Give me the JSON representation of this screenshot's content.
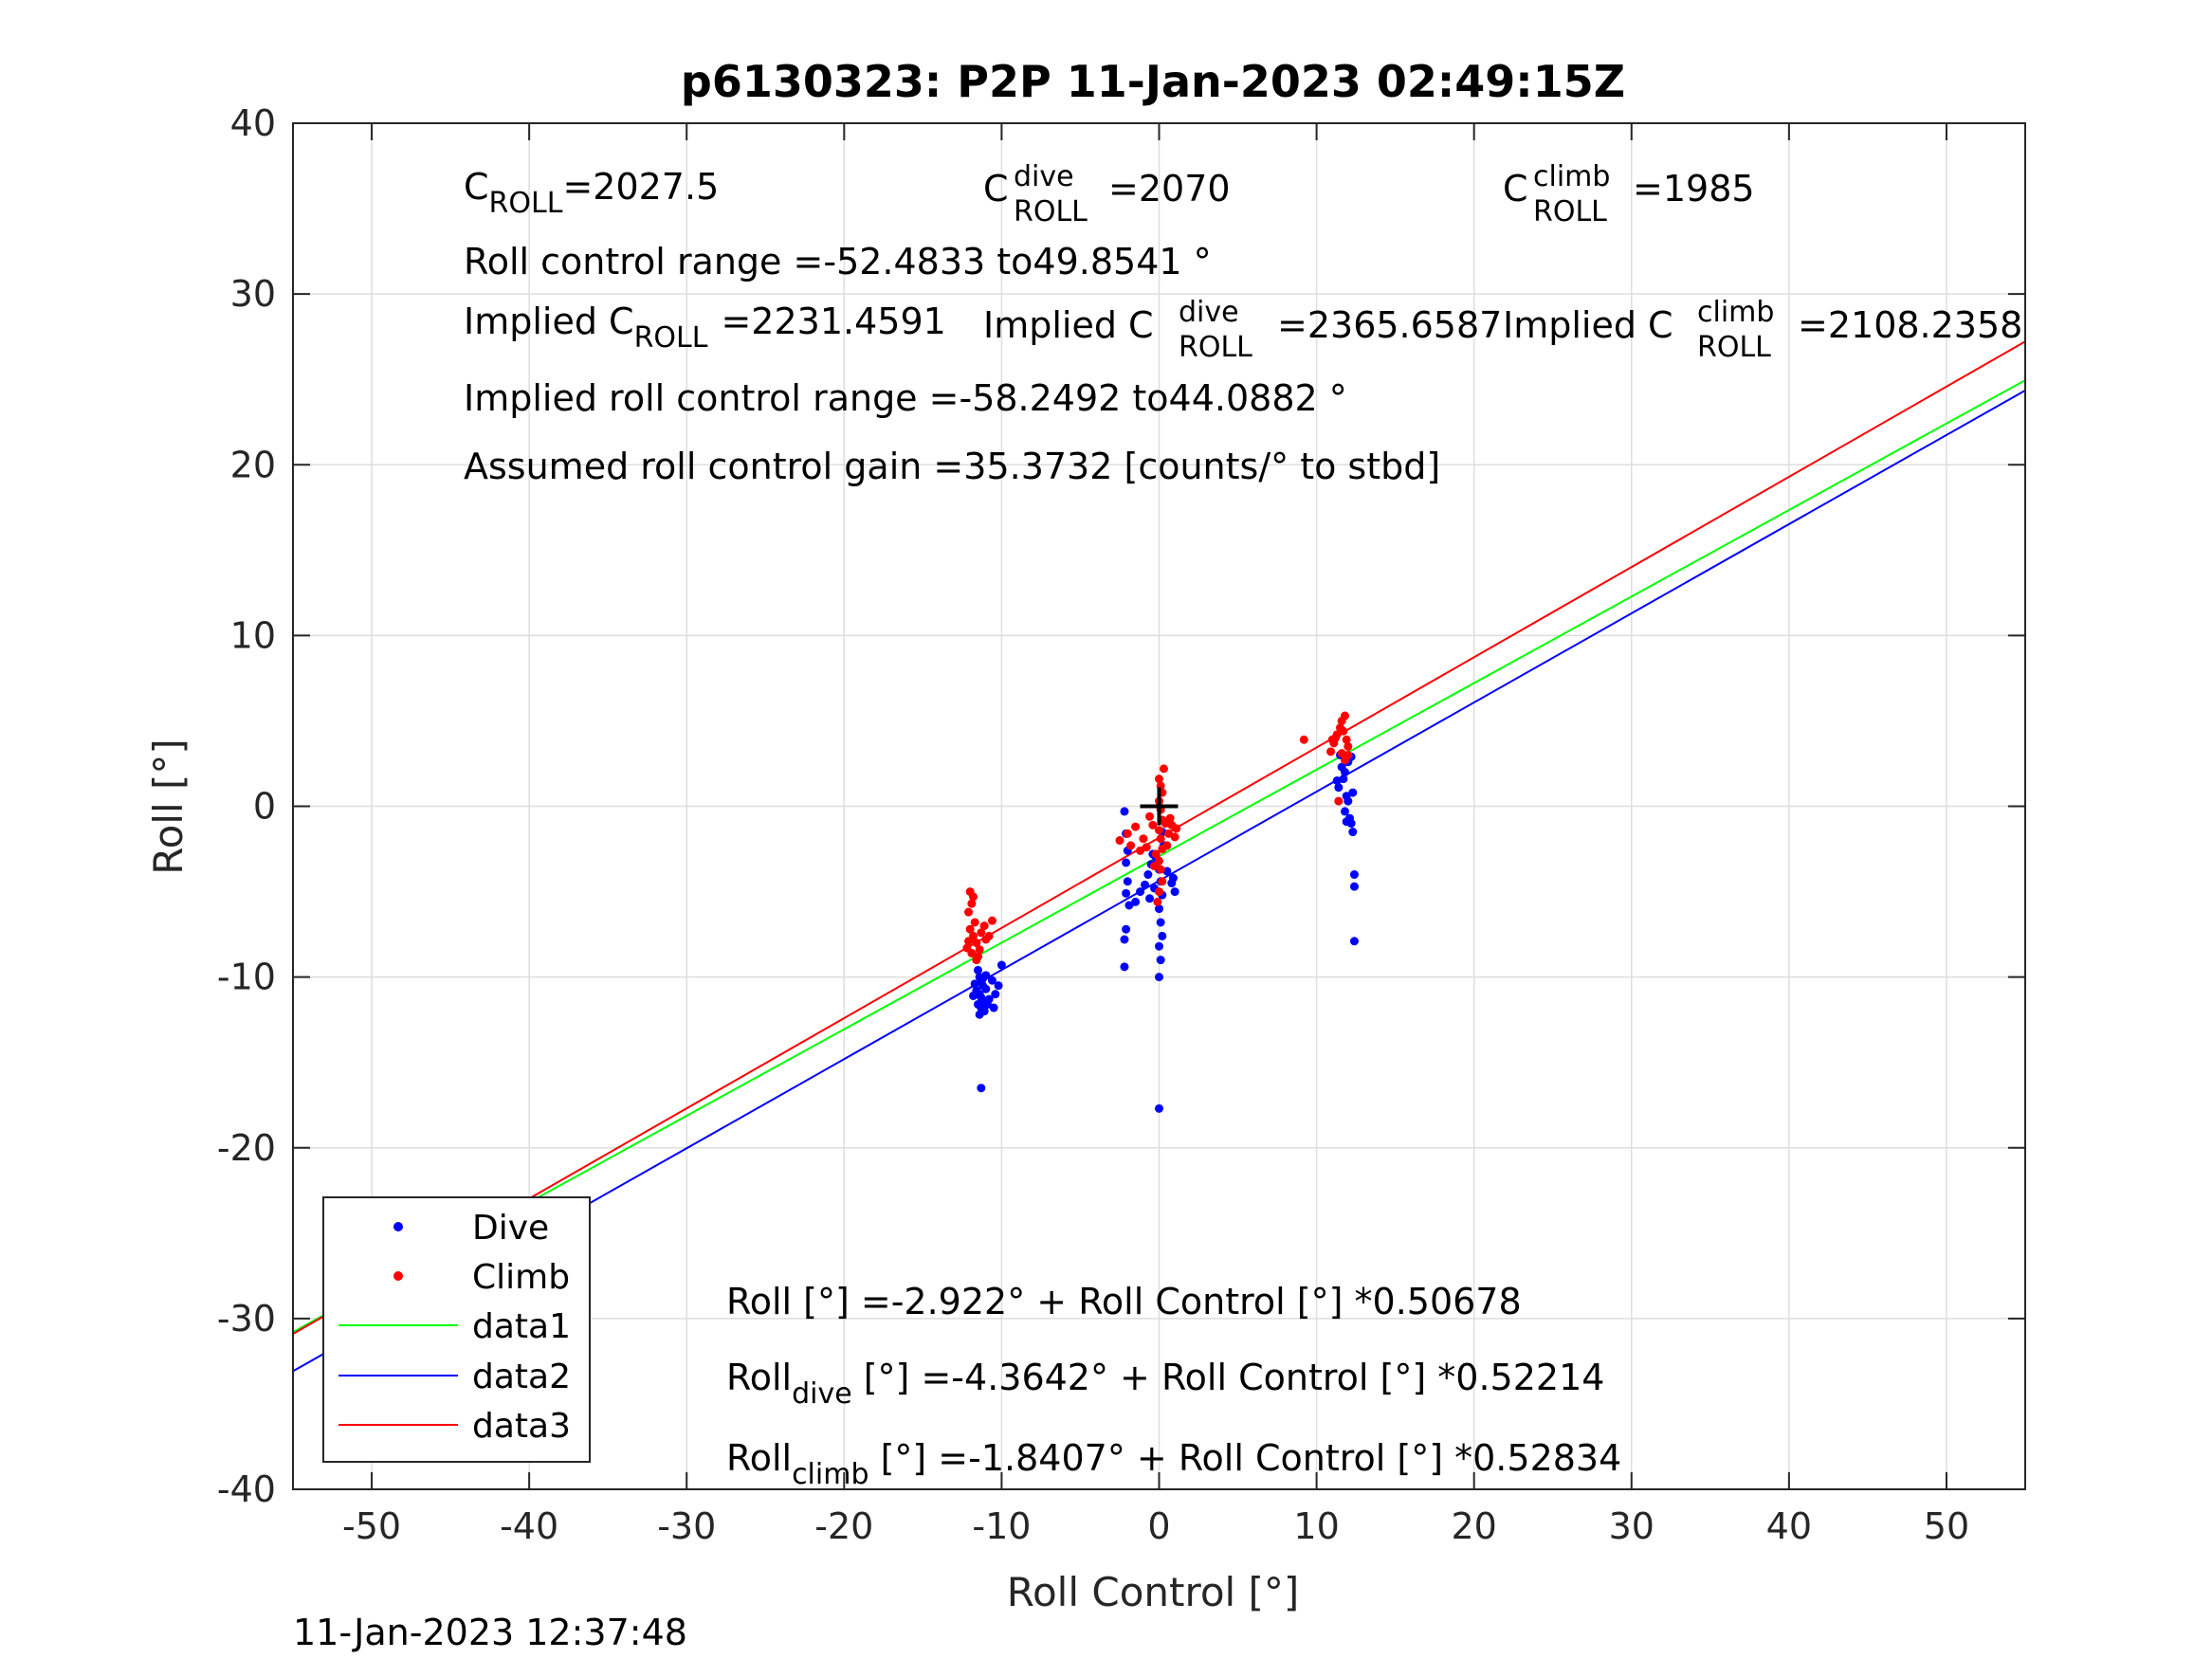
{
  "chart_data": {
    "type": "scatter",
    "title": "p6130323: P2P 11-Jan-2023 02:49:15Z",
    "xlabel": "Roll Control [°]",
    "ylabel": "Roll [°]",
    "xlim": [
      -55,
      55
    ],
    "ylim": [
      -40,
      40
    ],
    "xticks": [
      "-50",
      "-40",
      "-30",
      "-20",
      "-10",
      "0",
      "10",
      "20",
      "30",
      "40",
      "50"
    ],
    "yticks": [
      "-40",
      "-30",
      "-20",
      "-10",
      "0",
      "10",
      "20",
      "30",
      "40"
    ],
    "grid": true,
    "legend_position": "bottom-left",
    "footer_timestamp": "11-Jan-2023 12:37:48",
    "annotations": {
      "c_roll": {
        "base": "C",
        "sub": "ROLL",
        "value": "=2027.5"
      },
      "c_roll_dive": {
        "base": "C",
        "sub": "ROLL",
        "sup": "dive",
        "value": "=2070"
      },
      "c_roll_climb": {
        "base": "C",
        "sub": "ROLL",
        "sup": "climb",
        "value": "=1985"
      },
      "range": "Roll control range =-52.4833 to49.8541 °",
      "implied_c": {
        "prefix": "Implied C",
        "sub": "ROLL",
        "value": "=2231.4591"
      },
      "implied_c_dive": {
        "prefix": "Implied C",
        "sub": "ROLL",
        "sup": "dive",
        "value": "=2365.6587"
      },
      "implied_c_climb": {
        "prefix": "Implied C",
        "sub": "ROLL",
        "sup": "climb",
        "value": "=2108.2358"
      },
      "implied_range": "Implied roll control range =-58.2492 to44.0882 °",
      "gain": "Assumed roll control gain =35.3732 [counts/° to stbd]",
      "fit_all": "Roll [°] =-2.922° + Roll Control [°] *0.50678",
      "fit_dive": {
        "base": "Roll",
        "sub": "dive",
        "rest": " [°] =-4.3642° + Roll Control [°] *0.52214"
      },
      "fit_climb": {
        "base": "Roll",
        "sub": "climb",
        "rest": " [°] =-1.8407° + Roll Control [°] *0.52834"
      }
    },
    "series": [
      {
        "name": "Dive",
        "kind": "points",
        "color": "#0000ff",
        "points": [
          [
            -11.5,
            -9.6
          ],
          [
            -11.4,
            -10.0
          ],
          [
            -11.3,
            -10.3
          ],
          [
            -11.2,
            -10.5
          ],
          [
            -11.6,
            -10.8
          ],
          [
            -11.4,
            -11.0
          ],
          [
            -11.3,
            -11.2
          ],
          [
            -11.2,
            -11.4
          ],
          [
            -11.5,
            -11.6
          ],
          [
            -11.3,
            -11.8
          ],
          [
            -11.1,
            -12.0
          ],
          [
            -11.4,
            -12.2
          ],
          [
            -11.2,
            -10.1
          ],
          [
            -11.0,
            -10.7
          ],
          [
            -10.8,
            -11.3
          ],
          [
            -10.6,
            -10.2
          ],
          [
            -10.4,
            -11.0
          ],
          [
            -10.5,
            -11.8
          ],
          [
            -10.2,
            -10.5
          ],
          [
            -10.0,
            -9.3
          ],
          [
            -11.7,
            -10.4
          ],
          [
            -11.8,
            -11.1
          ],
          [
            -11.0,
            -9.9
          ],
          [
            -10.9,
            -11.6
          ],
          [
            -11.3,
            -16.5
          ],
          [
            -2.2,
            -0.3
          ],
          [
            -2.1,
            -1.6
          ],
          [
            -2.0,
            -2.6
          ],
          [
            -2.1,
            -3.3
          ],
          [
            -2.0,
            -4.4
          ],
          [
            -2.1,
            -5.1
          ],
          [
            -1.9,
            -5.8
          ],
          [
            -2.1,
            -7.2
          ],
          [
            -2.2,
            -7.8
          ],
          [
            -2.2,
            -9.4
          ],
          [
            -1.5,
            -5.6
          ],
          [
            -1.2,
            -5.0
          ],
          [
            -0.9,
            -4.6
          ],
          [
            -0.7,
            -4.0
          ],
          [
            -0.5,
            -3.4
          ],
          [
            -0.4,
            -2.8
          ],
          [
            -0.3,
            -4.8
          ],
          [
            -0.6,
            -5.4
          ],
          [
            -0.2,
            -3.0
          ],
          [
            0.0,
            -3.7
          ],
          [
            0.1,
            -4.4
          ],
          [
            0.2,
            -5.2
          ],
          [
            0.0,
            -6.0
          ],
          [
            0.1,
            -6.8
          ],
          [
            0.2,
            -7.6
          ],
          [
            0.0,
            -8.2
          ],
          [
            0.1,
            -9.0
          ],
          [
            0.0,
            -10.0
          ],
          [
            0.2,
            -1.5
          ],
          [
            0.3,
            -2.3
          ],
          [
            0.5,
            -3.8
          ],
          [
            0.8,
            -4.5
          ],
          [
            1.0,
            -5.0
          ],
          [
            0.9,
            -4.2
          ],
          [
            0.0,
            -17.7
          ],
          [
            11.3,
            1.5
          ],
          [
            11.4,
            1.1
          ],
          [
            11.6,
            2.3
          ],
          [
            11.8,
            2.0
          ],
          [
            11.7,
            1.6
          ],
          [
            11.9,
            0.6
          ],
          [
            12.0,
            0.3
          ],
          [
            11.8,
            -0.3
          ],
          [
            12.1,
            -0.7
          ],
          [
            12.2,
            -1.0
          ],
          [
            11.9,
            -0.9
          ],
          [
            12.3,
            -1.5
          ],
          [
            12.0,
            2.6
          ],
          [
            12.2,
            2.9
          ],
          [
            12.3,
            0.8
          ],
          [
            12.4,
            -4.0
          ],
          [
            12.4,
            -4.7
          ],
          [
            12.4,
            -7.9
          ],
          [
            11.5,
            3.0
          ]
        ]
      },
      {
        "name": "Climb",
        "kind": "points",
        "color": "#ff0000",
        "points": [
          [
            -12.0,
            -5.0
          ],
          [
            -11.8,
            -5.3
          ],
          [
            -11.9,
            -5.7
          ],
          [
            -12.1,
            -6.2
          ],
          [
            -11.7,
            -6.8
          ],
          [
            -12.0,
            -7.2
          ],
          [
            -11.8,
            -7.6
          ],
          [
            -11.6,
            -8.0
          ],
          [
            -12.2,
            -8.3
          ],
          [
            -11.9,
            -8.6
          ],
          [
            -11.5,
            -8.8
          ],
          [
            -11.3,
            -7.4
          ],
          [
            -11.1,
            -7.0
          ],
          [
            -11.0,
            -7.8
          ],
          [
            -10.8,
            -7.6
          ],
          [
            -10.6,
            -6.7
          ],
          [
            -11.4,
            -8.4
          ],
          [
            -12.1,
            -7.9
          ],
          [
            -11.6,
            -9.0
          ],
          [
            -2.5,
            -2.0
          ],
          [
            -2.0,
            -1.6
          ],
          [
            -1.8,
            -2.3
          ],
          [
            -1.5,
            -1.2
          ],
          [
            -1.2,
            -2.6
          ],
          [
            -1.0,
            -1.9
          ],
          [
            -0.8,
            -2.4
          ],
          [
            -0.6,
            -0.6
          ],
          [
            -0.4,
            -1.1
          ],
          [
            -0.2,
            -2.8
          ],
          [
            0.0,
            1.6
          ],
          [
            0.1,
            1.2
          ],
          [
            0.2,
            0.8
          ],
          [
            0.3,
            2.2
          ],
          [
            0.0,
            0.3
          ],
          [
            0.1,
            -0.2
          ],
          [
            0.2,
            -0.8
          ],
          [
            0.0,
            -1.4
          ],
          [
            0.1,
            -1.9
          ],
          [
            0.2,
            -2.5
          ],
          [
            0.0,
            -3.2
          ],
          [
            0.1,
            -3.7
          ],
          [
            0.2,
            -4.4
          ],
          [
            0.0,
            -5.0
          ],
          [
            -0.1,
            -5.6
          ],
          [
            0.4,
            -1.0
          ],
          [
            0.6,
            -1.6
          ],
          [
            0.8,
            -1.1
          ],
          [
            1.0,
            -1.8
          ],
          [
            1.1,
            -1.3
          ],
          [
            0.5,
            -2.3
          ],
          [
            0.7,
            -0.7
          ],
          [
            -0.3,
            -3.5
          ],
          [
            10.9,
            3.2
          ],
          [
            11.1,
            3.7
          ],
          [
            11.3,
            4.2
          ],
          [
            11.5,
            4.6
          ],
          [
            11.6,
            5.0
          ],
          [
            11.8,
            5.3
          ],
          [
            11.7,
            4.4
          ],
          [
            11.9,
            3.9
          ],
          [
            12.0,
            3.5
          ],
          [
            11.2,
            4.0
          ],
          [
            11.0,
            3.9
          ],
          [
            11.6,
            3.1
          ],
          [
            11.8,
            2.7
          ],
          [
            12.0,
            3.0
          ],
          [
            11.4,
            0.3
          ],
          [
            9.2,
            3.9
          ]
        ]
      },
      {
        "name": "data1",
        "kind": "line",
        "color": "#00ff00",
        "intercept": -2.922,
        "slope": 0.50678
      },
      {
        "name": "data2",
        "kind": "line",
        "color": "#0000ff",
        "intercept": -4.3642,
        "slope": 0.52214
      },
      {
        "name": "data3",
        "kind": "line",
        "color": "#ff0000",
        "intercept": -1.8407,
        "slope": 0.52834
      }
    ],
    "crosshair": {
      "x": 0,
      "y": 0,
      "color": "#000000"
    }
  }
}
